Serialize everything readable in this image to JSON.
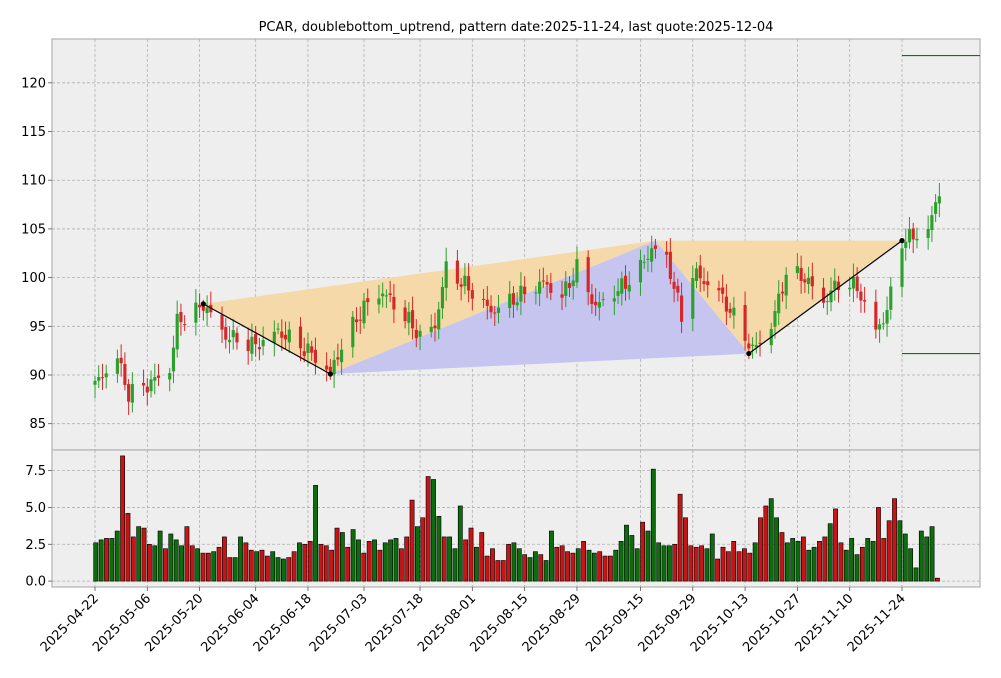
{
  "chart_data": {
    "type": "candlestick",
    "title": "PCAR, doublebottom_uptrend, pattern date:2025-11-24, last quote:2025-12-04",
    "price_axis": {
      "ylim": [
        82.3,
        124.5
      ],
      "ticks": [
        85,
        90,
        95,
        100,
        105,
        110,
        115,
        120
      ]
    },
    "volume_axis": {
      "ylim": [
        -0.4,
        8.9
      ],
      "ticks": [
        0.0,
        2.5,
        5.0,
        7.5
      ],
      "tick_labels": [
        "0.0",
        "2.5",
        "5.0",
        "7.5"
      ]
    },
    "x_axis": {
      "start_date": "2025-04-22",
      "end_date": "2025-12-04",
      "tick_labels": [
        "2025-04-22",
        "2025-05-06",
        "2025-05-20",
        "2025-06-04",
        "2025-06-18",
        "2025-07-03",
        "2025-07-18",
        "2025-08-01",
        "2025-08-15",
        "2025-08-29",
        "2025-09-15",
        "2025-09-29",
        "2025-10-13",
        "2025-10-27",
        "2025-11-10",
        "2025-11-24"
      ]
    },
    "price_anchors": [
      [
        "2025-04-22",
        89.0
      ],
      [
        "2025-04-28",
        91.8
      ],
      [
        "2025-05-01",
        88.0
      ],
      [
        "2025-05-06",
        89.0
      ],
      [
        "2025-05-12",
        90.5
      ],
      [
        "2025-05-14",
        95.5
      ],
      [
        "2025-05-20",
        96.8
      ],
      [
        "2025-05-21",
        97.3
      ],
      [
        "2025-05-27",
        94.0
      ],
      [
        "2025-06-04",
        93.0
      ],
      [
        "2025-06-10",
        94.5
      ],
      [
        "2025-06-18",
        92.5
      ],
      [
        "2025-06-24",
        90.2
      ],
      [
        "2025-06-27",
        93.0
      ],
      [
        "2025-07-03",
        97.0
      ],
      [
        "2025-07-08",
        98.5
      ],
      [
        "2025-07-14",
        96.0
      ],
      [
        "2025-07-18",
        94.0
      ],
      [
        "2025-07-22",
        95.0
      ],
      [
        "2025-07-25",
        101.0
      ],
      [
        "2025-08-01",
        98.5
      ],
      [
        "2025-08-06",
        96.5
      ],
      [
        "2025-08-13",
        98.0
      ],
      [
        "2025-08-20",
        99.5
      ],
      [
        "2025-08-25",
        98.0
      ],
      [
        "2025-08-29",
        101.0
      ],
      [
        "2025-09-03",
        97.0
      ],
      [
        "2025-09-10",
        99.0
      ],
      [
        "2025-09-15",
        101.0
      ],
      [
        "2025-09-18",
        103.0
      ],
      [
        "2025-09-22",
        102.0
      ],
      [
        "2025-09-26",
        96.0
      ],
      [
        "2025-09-29",
        100.5
      ],
      [
        "2025-10-06",
        98.5
      ],
      [
        "2025-10-13",
        94.0
      ],
      [
        "2025-10-15",
        92.5
      ],
      [
        "2025-10-20",
        95.0
      ],
      [
        "2025-10-24",
        100.5
      ],
      [
        "2025-10-29",
        100.0
      ],
      [
        "2025-11-03",
        97.5
      ],
      [
        "2025-11-07",
        99.5
      ],
      [
        "2025-11-12",
        99.0
      ],
      [
        "2025-11-17",
        94.5
      ],
      [
        "2025-11-20",
        96.5
      ],
      [
        "2025-11-24",
        103.8
      ],
      [
        "2025-12-01",
        104.8
      ],
      [
        "2025-12-04",
        109.0
      ]
    ],
    "volume_values": [
      2.6,
      2.8,
      2.9,
      2.9,
      3.4,
      8.5,
      4.6,
      3.0,
      3.7,
      3.6,
      2.5,
      2.4,
      3.4,
      2.2,
      3.2,
      2.8,
      2.4,
      3.7,
      2.4,
      2.2,
      1.9,
      1.9,
      2.0,
      2.3,
      3.0,
      1.6,
      1.6,
      3.0,
      2.6,
      2.1,
      2.0,
      2.1,
      1.7,
      2.0,
      1.6,
      1.5,
      1.6,
      2.0,
      2.6,
      2.5,
      2.7,
      6.5,
      2.5,
      2.4,
      2.1,
      3.6,
      3.3,
      2.3,
      3.5,
      2.8,
      1.9,
      2.7,
      2.8,
      2.1,
      2.6,
      2.8,
      2.9,
      2.2,
      3.0,
      5.5,
      3.7,
      4.3,
      7.1,
      6.9,
      4.4,
      3.0,
      3.0,
      2.2,
      5.1,
      2.8,
      3.6,
      2.3,
      3.3,
      1.7,
      2.2,
      1.4,
      1.4,
      2.5,
      2.6,
      2.2,
      1.8,
      1.6,
      2.0,
      1.8,
      1.4,
      3.4,
      2.3,
      2.4,
      2.0,
      1.9,
      2.2,
      2.7,
      2.1,
      1.9,
      2.0,
      1.7,
      1.7,
      2.1,
      2.7,
      3.8,
      3.1,
      2.2,
      4.0,
      3.4,
      7.6,
      2.6,
      2.4,
      2.4,
      2.5,
      5.9,
      4.3,
      2.4,
      2.3,
      2.4,
      2.2,
      3.2,
      1.5,
      2.3,
      2.0,
      2.7,
      2.0,
      2.2,
      1.9,
      2.6,
      4.3,
      5.1,
      5.6,
      4.3,
      3.3,
      2.6,
      2.9,
      2.7,
      3.0,
      2.1,
      2.3,
      2.7,
      3.0,
      3.9,
      4.9,
      2.6,
      2.1,
      2.9,
      1.8,
      2.3,
      2.9,
      2.7,
      5.0,
      2.9,
      4.1,
      5.6,
      4.1,
      3.2,
      2.2,
      0.9,
      3.4,
      3.0,
      3.7,
      0.2
    ],
    "pattern": {
      "name": "doublebottom_uptrend",
      "points": [
        [
          "2025-05-21",
          97.3
        ],
        [
          "2025-06-24",
          90.1
        ],
        [
          "2025-09-19",
          103.8
        ],
        [
          "2025-10-14",
          92.2
        ],
        [
          "2025-11-24",
          103.8
        ]
      ],
      "peak_fill_color": "#f5d9a8",
      "trough_fill_color": "#c6c5f0",
      "resistance_level": 122.8,
      "support_level": 92.2,
      "level_color": "#008000"
    },
    "colors": {
      "up": "#2ca02c",
      "down": "#d62728",
      "up_volume": "#0b6e0b",
      "down_volume": "#c81414"
    },
    "grid": true,
    "legend": "none"
  }
}
